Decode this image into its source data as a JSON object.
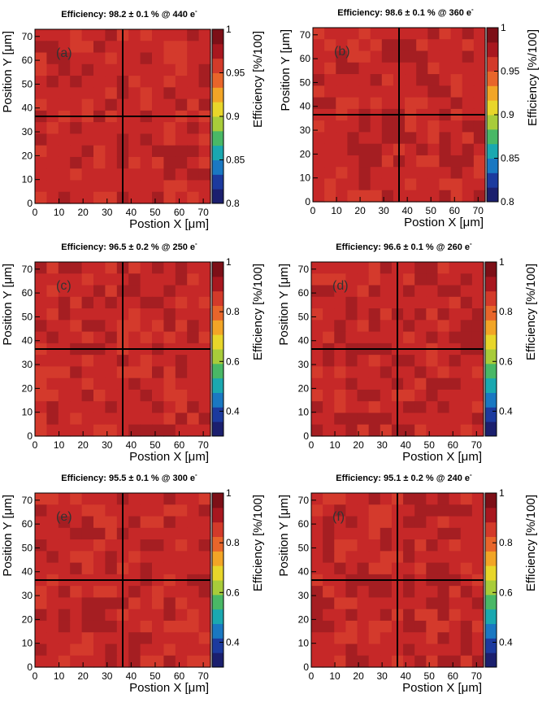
{
  "chart_data": [
    {
      "type": "heatmap",
      "panel": "(a)",
      "title_prefix": "Efficiency: ",
      "value": "98.2",
      "pm": "± 0.1",
      "unit_part": " % @ ",
      "charge": "440 e",
      "charge_sup": "-",
      "xlabel": "Postion X [μm]",
      "ylabel": "Position Y [μm]",
      "zlabel": "Efficiency [%/100]",
      "xlim": [
        0,
        73
      ],
      "ylim": [
        0,
        73
      ],
      "xticks": [
        0,
        10,
        20,
        30,
        40,
        50,
        60,
        70
      ],
      "yticks": [
        0,
        10,
        20,
        30,
        40,
        50,
        60,
        70
      ],
      "zlim": [
        0.8,
        1.0
      ],
      "zticks": [
        0.8,
        0.85,
        0.9,
        0.95,
        1
      ],
      "zticklabels": [
        "0.8",
        "0.85",
        "0.9",
        "0.95",
        "1"
      ],
      "grid_bins": [
        15,
        15
      ],
      "mean_efficiency": 0.982,
      "cross_lines": {
        "x": 36.5,
        "y": 36.5
      }
    },
    {
      "type": "heatmap",
      "panel": "(b)",
      "title_prefix": "Efficiency: ",
      "value": "98.6",
      "pm": "± 0.1",
      "unit_part": " % @ ",
      "charge": "360 e",
      "charge_sup": "-",
      "xlabel": "Postion X [μm]",
      "ylabel": "Position Y [μm]",
      "zlabel": "Efficiency [%/100]",
      "xlim": [
        0,
        73
      ],
      "ylim": [
        0,
        73
      ],
      "xticks": [
        0,
        10,
        20,
        30,
        40,
        50,
        60,
        70
      ],
      "yticks": [
        0,
        10,
        20,
        30,
        40,
        50,
        60,
        70
      ],
      "zlim": [
        0.8,
        1.0
      ],
      "zticks": [
        0.8,
        0.85,
        0.9,
        0.95,
        1
      ],
      "zticklabels": [
        "0.8",
        "0.85",
        "0.9",
        "0.95",
        "1"
      ],
      "grid_bins": [
        15,
        15
      ],
      "mean_efficiency": 0.986,
      "cross_lines": {
        "x": 36.5,
        "y": 36.5
      }
    },
    {
      "type": "heatmap",
      "panel": "(c)",
      "title_prefix": "Efficiency: ",
      "value": "96.5",
      "pm": "± 0.2",
      "unit_part": " % @ ",
      "charge": "250 e",
      "charge_sup": "-",
      "xlabel": "Postion X [μm]",
      "ylabel": "Position Y [μm]",
      "zlabel": "Efficiency [%/100]",
      "xlim": [
        0,
        73
      ],
      "ylim": [
        0,
        73
      ],
      "xticks": [
        0,
        10,
        20,
        30,
        40,
        50,
        60,
        70
      ],
      "yticks": [
        0,
        10,
        20,
        30,
        40,
        50,
        60,
        70
      ],
      "zlim": [
        0.3,
        1.0
      ],
      "zticks": [
        0.4,
        0.6,
        0.8,
        1
      ],
      "zticklabels": [
        "0.4",
        "0.6",
        "0.8",
        "1"
      ],
      "grid_bins": [
        15,
        15
      ],
      "mean_efficiency": 0.965,
      "cross_lines": {
        "x": 36.5,
        "y": 36.5
      }
    },
    {
      "type": "heatmap",
      "panel": "(d)",
      "title_prefix": "Efficiency: ",
      "value": "96.6",
      "pm": "± 0.1",
      "unit_part": " % @ ",
      "charge": "260 e",
      "charge_sup": "-",
      "xlabel": "Postion X [μm]",
      "ylabel": "Position Y [μm]",
      "zlabel": "Efficiency [%/100]",
      "xlim": [
        0,
        73
      ],
      "ylim": [
        0,
        73
      ],
      "xticks": [
        0,
        10,
        20,
        30,
        40,
        50,
        60,
        70
      ],
      "yticks": [
        0,
        10,
        20,
        30,
        40,
        50,
        60,
        70
      ],
      "zlim": [
        0.3,
        1.0
      ],
      "zticks": [
        0.4,
        0.6,
        0.8,
        1
      ],
      "zticklabels": [
        "0.4",
        "0.6",
        "0.8",
        "1"
      ],
      "grid_bins": [
        15,
        15
      ],
      "mean_efficiency": 0.966,
      "cross_lines": {
        "x": 36.5,
        "y": 36.5
      }
    },
    {
      "type": "heatmap",
      "panel": "(e)",
      "title_prefix": "Efficiency: ",
      "value": "95.5",
      "pm": "± 0.1",
      "unit_part": " % @ ",
      "charge": "300 e",
      "charge_sup": "-",
      "xlabel": "Postion X [μm]",
      "ylabel": "Position Y [μm]",
      "zlabel": "Efficiency [%/100]",
      "xlim": [
        0,
        73
      ],
      "ylim": [
        0,
        73
      ],
      "xticks": [
        0,
        10,
        20,
        30,
        40,
        50,
        60,
        70
      ],
      "yticks": [
        0,
        10,
        20,
        30,
        40,
        50,
        60,
        70
      ],
      "zlim": [
        0.3,
        1.0
      ],
      "zticks": [
        0.4,
        0.6,
        0.8,
        1
      ],
      "zticklabels": [
        "0.4",
        "0.6",
        "0.8",
        "1"
      ],
      "grid_bins": [
        15,
        15
      ],
      "mean_efficiency": 0.955,
      "cross_lines": {
        "x": 36.5,
        "y": 36.5
      }
    },
    {
      "type": "heatmap",
      "panel": "(f)",
      "title_prefix": "Efficiency: ",
      "value": "95.1",
      "pm": "± 0.2",
      "unit_part": " % @ ",
      "charge": "240 e",
      "charge_sup": "-",
      "xlabel": "Postion X [μm]",
      "ylabel": "Position Y [μm]",
      "zlabel": "Efficiency [%/100]",
      "xlim": [
        0,
        73
      ],
      "ylim": [
        0,
        73
      ],
      "xticks": [
        0,
        10,
        20,
        30,
        40,
        50,
        60,
        70
      ],
      "yticks": [
        0,
        10,
        20,
        30,
        40,
        50,
        60,
        70
      ],
      "zlim": [
        0.3,
        1.0
      ],
      "zticks": [
        0.4,
        0.6,
        0.8,
        1
      ],
      "zticklabels": [
        "0.4",
        "0.6",
        "0.8",
        "1"
      ],
      "grid_bins": [
        15,
        15
      ],
      "mean_efficiency": 0.951,
      "cross_lines": {
        "x": 36.5,
        "y": 36.5
      }
    }
  ],
  "colors": {
    "cell_base": "#c62828",
    "cell_dark": "#a51e22",
    "cell_light": "#d43a2c",
    "line": "#000000"
  },
  "palette": [
    "#1b1f6e",
    "#1c3a9e",
    "#1a78c2",
    "#1aa8b0",
    "#49b866",
    "#a8cc3a",
    "#e8d62a",
    "#f2a526",
    "#e8652a",
    "#d33a2a",
    "#a8171f",
    "#7d0f17"
  ]
}
